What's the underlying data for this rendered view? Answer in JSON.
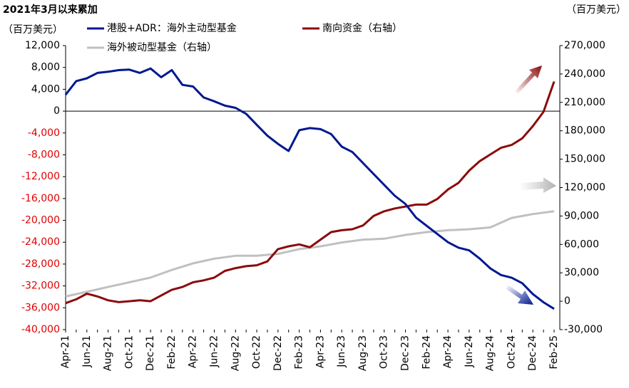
{
  "chart_data": {
    "type": "line",
    "title": "2021年3月以来累加",
    "y_axis_label": "（百万美元）",
    "y2_axis_label": "（百万美元）",
    "categories": [
      "Apr-21",
      null,
      "Jun-21",
      null,
      "Aug-21",
      null,
      "Oct-21",
      null,
      "Dec-21",
      null,
      "Feb-22",
      null,
      "Apr-22",
      null,
      "Jun-22",
      null,
      "Aug-22",
      null,
      "Oct-22",
      null,
      "Dec-22",
      null,
      "Feb-23",
      null,
      "Apr-23",
      null,
      "Jun-23",
      null,
      "Aug-23",
      null,
      "Oct-23",
      null,
      "Dec-23",
      null,
      "Feb-24",
      null,
      "Apr-24",
      null,
      "Jun-24",
      null,
      "Aug-24",
      null,
      "Oct-24",
      null,
      "Dec-24",
      null,
      "Feb-25"
    ],
    "series": [
      {
        "name": "港股+ADR：海外主动型基金",
        "color": "#00188f",
        "axis": "y",
        "values": [
          3000,
          5500,
          6000,
          7000,
          7200,
          7500,
          7600,
          7000,
          7800,
          6200,
          7500,
          4800,
          4500,
          2500,
          1800,
          1000,
          600,
          -500,
          -2500,
          -4500,
          -6000,
          -7300,
          -3500,
          -3100,
          -3300,
          -4200,
          -6500,
          -7500,
          -9500,
          -11500,
          -13500,
          -15500,
          -17000,
          -19500,
          -21000,
          -22500,
          -24000,
          -25000,
          -25500,
          -27000,
          -28800,
          -30000,
          -30500,
          -31500,
          -33500,
          -35000,
          -36200
        ]
      },
      {
        "name": "南向资金（右轴）",
        "color": "#8b0a0a",
        "axis": "y2",
        "values": [
          -2000,
          2000,
          8000,
          5000,
          1000,
          -1000,
          0,
          1000,
          0,
          6000,
          12000,
          15000,
          20000,
          22000,
          25000,
          32000,
          35000,
          37000,
          38000,
          42000,
          55000,
          58000,
          60000,
          57000,
          65000,
          73000,
          75000,
          76000,
          80000,
          90000,
          95000,
          98000,
          100000,
          102000,
          102000,
          108000,
          118000,
          125000,
          138000,
          148000,
          155000,
          162000,
          165000,
          172000,
          185000,
          200000,
          232000
        ]
      },
      {
        "name": "海外被动型基金（右轴）",
        "color": "#c0c0c0",
        "axis": "y2",
        "values": [
          5000,
          7500,
          10000,
          12500,
          15000,
          17500,
          20000,
          22500,
          25000,
          29000,
          33000,
          36500,
          40000,
          42500,
          45000,
          46500,
          48000,
          48000,
          48000,
          49000,
          50000,
          52500,
          55000,
          56500,
          58000,
          60000,
          62000,
          63500,
          65000,
          65500,
          66000,
          68000,
          70000,
          71500,
          73000,
          74000,
          75000,
          75500,
          76000,
          77000,
          78000,
          83000,
          88000,
          90000,
          92000,
          93500,
          95000
        ]
      }
    ],
    "ylim": [
      -40000,
      12000
    ],
    "yticks": [
      {
        "value": 12000,
        "label": "12,000"
      },
      {
        "value": 8000,
        "label": "8,000"
      },
      {
        "value": 4000,
        "label": "4,000"
      },
      0,
      {
        "value": -4000,
        "label": "-4,000"
      },
      {
        "value": -8000,
        "label": "-8,000"
      },
      {
        "value": -12000,
        "label": "-12,000"
      },
      {
        "value": -16000,
        "label": "-16,000"
      },
      {
        "value": -20000,
        "label": "-20,000"
      },
      {
        "value": -24000,
        "label": "-24,000"
      },
      {
        "value": -28000,
        "label": "-28,000"
      },
      {
        "value": -32000,
        "label": "-32,000"
      },
      {
        "value": -36000,
        "label": "-36,000"
      },
      {
        "value": -40000,
        "label": "-40,000"
      }
    ],
    "y2lim": [
      -30000,
      270000
    ],
    "y2ticks": [
      {
        "value": 270000,
        "label": "270,000"
      },
      {
        "value": 240000,
        "label": "240,000"
      },
      {
        "value": 210000,
        "label": "210,000"
      },
      {
        "value": 180000,
        "label": "180,000"
      },
      {
        "value": 150000,
        "label": "150,000"
      },
      {
        "value": 120000,
        "label": "120,000"
      },
      {
        "value": 90000,
        "label": "90,000"
      },
      {
        "value": 60000,
        "label": "60,000"
      },
      {
        "value": 30000,
        "label": "30,000"
      },
      0,
      {
        "value": -30000,
        "label": "-30,000"
      }
    ]
  }
}
